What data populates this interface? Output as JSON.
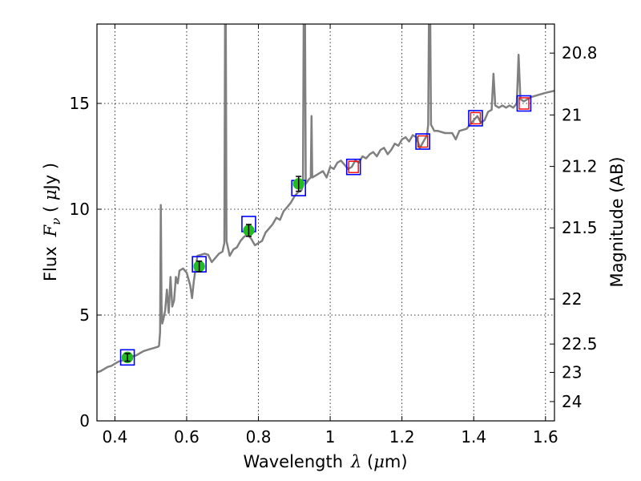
{
  "chart_data": {
    "type": "line",
    "xlabel": {
      "text": "Wavelength",
      "symbol": "λ",
      "unit_open": " (",
      "unit_math": "μ",
      "unit_text": "m)"
    },
    "ylabel": {
      "text": "Flux",
      "symbol": "F",
      "sub": "ν",
      "unit_open": " ( ",
      "unit_math": "μ",
      "unit_text": "Jy )"
    },
    "y2label": "Magnitude (AB)",
    "xlim": [
      0.35,
      1.625
    ],
    "ylim": [
      0,
      18.75
    ],
    "xticks": [
      0.4,
      0.6,
      0.8,
      1.0,
      1.2,
      1.4,
      1.6
    ],
    "xtick_labels": [
      "0.4",
      "0.6",
      "0.8",
      "1",
      "1.2",
      "1.4",
      "1.6"
    ],
    "yticks": [
      0,
      5,
      10,
      15
    ],
    "ytick_labels": [
      "0",
      "5",
      "10",
      "15"
    ],
    "y2ticks": [
      {
        "label": "20.8",
        "mag": 20.8
      },
      {
        "label": "21",
        "mag": 21.0
      },
      {
        "label": "21.2",
        "mag": 21.2
      },
      {
        "label": "21.5",
        "mag": 21.5
      },
      {
        "label": "22",
        "mag": 22.0
      },
      {
        "label": "22.5",
        "mag": 22.5
      },
      {
        "label": "23",
        "mag": 23.0
      },
      {
        "label": "24",
        "mag": 24.0
      }
    ],
    "grid": true,
    "colors": {
      "spectrum": "#808080",
      "photometry_fill": "#22bb22",
      "model_box": "#0000ff",
      "model_inner": "#ff0000",
      "errorbar": "#000000"
    },
    "spectrum": [
      [
        0.35,
        2.3
      ],
      [
        0.36,
        2.35
      ],
      [
        0.37,
        2.45
      ],
      [
        0.38,
        2.55
      ],
      [
        0.39,
        2.6
      ],
      [
        0.4,
        2.7
      ],
      [
        0.41,
        2.8
      ],
      [
        0.42,
        2.85
      ],
      [
        0.43,
        2.92
      ],
      [
        0.44,
        3.0
      ],
      [
        0.45,
        3.05
      ],
      [
        0.46,
        3.1
      ],
      [
        0.47,
        3.2
      ],
      [
        0.48,
        3.3
      ],
      [
        0.49,
        3.35
      ],
      [
        0.5,
        3.4
      ],
      [
        0.51,
        3.45
      ],
      [
        0.52,
        3.5
      ],
      [
        0.523,
        3.55
      ],
      [
        0.526,
        4.2
      ],
      [
        0.528,
        10.2
      ],
      [
        0.53,
        5.5
      ],
      [
        0.532,
        4.6
      ],
      [
        0.535,
        4.8
      ],
      [
        0.54,
        5.2
      ],
      [
        0.545,
        6.2
      ],
      [
        0.55,
        5.1
      ],
      [
        0.555,
        6.8
      ],
      [
        0.56,
        5.4
      ],
      [
        0.565,
        5.7
      ],
      [
        0.57,
        6.8
      ],
      [
        0.575,
        6.5
      ],
      [
        0.58,
        7.1
      ],
      [
        0.59,
        7.2
      ],
      [
        0.6,
        7.0
      ],
      [
        0.61,
        6.4
      ],
      [
        0.615,
        5.8
      ],
      [
        0.62,
        6.6
      ],
      [
        0.63,
        7.8
      ],
      [
        0.64,
        7.85
      ],
      [
        0.65,
        7.9
      ],
      [
        0.66,
        7.85
      ],
      [
        0.67,
        7.5
      ],
      [
        0.68,
        7.7
      ],
      [
        0.69,
        7.9
      ],
      [
        0.7,
        8.0
      ],
      [
        0.705,
        8.4
      ],
      [
        0.707,
        18.75
      ],
      [
        0.709,
        18.75
      ],
      [
        0.711,
        8.5
      ],
      [
        0.72,
        7.8
      ],
      [
        0.73,
        8.1
      ],
      [
        0.74,
        8.2
      ],
      [
        0.75,
        8.5
      ],
      [
        0.76,
        8.7
      ],
      [
        0.77,
        8.8
      ],
      [
        0.78,
        8.6
      ],
      [
        0.79,
        8.3
      ],
      [
        0.8,
        8.4
      ],
      [
        0.81,
        8.5
      ],
      [
        0.82,
        8.9
      ],
      [
        0.83,
        9.1
      ],
      [
        0.84,
        9.3
      ],
      [
        0.85,
        9.6
      ],
      [
        0.86,
        9.5
      ],
      [
        0.87,
        9.9
      ],
      [
        0.88,
        10.1
      ],
      [
        0.89,
        10.3
      ],
      [
        0.9,
        10.6
      ],
      [
        0.91,
        10.8
      ],
      [
        0.92,
        10.9
      ],
      [
        0.924,
        11.1
      ],
      [
        0.926,
        18.75
      ],
      [
        0.93,
        18.75
      ],
      [
        0.932,
        11.2
      ],
      [
        0.94,
        11.4
      ],
      [
        0.946,
        11.5
      ],
      [
        0.948,
        14.4
      ],
      [
        0.95,
        11.5
      ],
      [
        0.96,
        11.6
      ],
      [
        0.97,
        11.7
      ],
      [
        0.98,
        11.8
      ],
      [
        0.99,
        11.5
      ],
      [
        1.0,
        12.0
      ],
      [
        1.01,
        11.9
      ],
      [
        1.02,
        12.2
      ],
      [
        1.03,
        12.3
      ],
      [
        1.04,
        12.1
      ],
      [
        1.05,
        11.9
      ],
      [
        1.06,
        12.0
      ],
      [
        1.07,
        12.3
      ],
      [
        1.08,
        12.2
      ],
      [
        1.09,
        12.5
      ],
      [
        1.1,
        12.4
      ],
      [
        1.11,
        12.6
      ],
      [
        1.12,
        12.7
      ],
      [
        1.13,
        12.5
      ],
      [
        1.14,
        12.8
      ],
      [
        1.15,
        12.9
      ],
      [
        1.16,
        12.6
      ],
      [
        1.17,
        12.8
      ],
      [
        1.18,
        13.1
      ],
      [
        1.19,
        13.0
      ],
      [
        1.2,
        13.3
      ],
      [
        1.21,
        13.4
      ],
      [
        1.22,
        13.2
      ],
      [
        1.23,
        13.5
      ],
      [
        1.24,
        13.4
      ],
      [
        1.25,
        12.9
      ],
      [
        1.26,
        13.2
      ],
      [
        1.27,
        13.5
      ],
      [
        1.273,
        14.0
      ],
      [
        1.275,
        18.75
      ],
      [
        1.279,
        18.75
      ],
      [
        1.281,
        14.0
      ],
      [
        1.29,
        13.7
      ],
      [
        1.3,
        13.7
      ],
      [
        1.32,
        13.6
      ],
      [
        1.34,
        13.6
      ],
      [
        1.35,
        13.3
      ],
      [
        1.36,
        13.7
      ],
      [
        1.38,
        13.8
      ],
      [
        1.39,
        14.0
      ],
      [
        1.4,
        14.2
      ],
      [
        1.41,
        14.4
      ],
      [
        1.42,
        14.1
      ],
      [
        1.43,
        14.2
      ],
      [
        1.44,
        14.6
      ],
      [
        1.45,
        14.7
      ],
      [
        1.455,
        16.4
      ],
      [
        1.46,
        14.9
      ],
      [
        1.47,
        14.8
      ],
      [
        1.48,
        14.9
      ],
      [
        1.49,
        14.8
      ],
      [
        1.5,
        14.9
      ],
      [
        1.51,
        14.8
      ],
      [
        1.52,
        15.0
      ],
      [
        1.525,
        17.3
      ],
      [
        1.53,
        15.2
      ],
      [
        1.54,
        15.1
      ],
      [
        1.55,
        15.2
      ],
      [
        1.56,
        15.3
      ],
      [
        1.58,
        15.4
      ],
      [
        1.6,
        15.5
      ],
      [
        1.625,
        15.6
      ]
    ],
    "photometry": [
      {
        "x": 0.435,
        "y": 3.0,
        "err": 0.18
      },
      {
        "x": 0.635,
        "y": 7.3,
        "err": 0.25
      },
      {
        "x": 0.773,
        "y": 9.0,
        "err": 0.28
      },
      {
        "x": 0.912,
        "y": 11.2,
        "err": 0.35
      }
    ],
    "model_points": [
      {
        "x": 0.435,
        "y": 3.0,
        "inner": false
      },
      {
        "x": 0.635,
        "y": 7.4,
        "inner": false
      },
      {
        "x": 0.773,
        "y": 9.3,
        "inner": false
      },
      {
        "x": 0.912,
        "y": 11.0,
        "inner": false
      },
      {
        "x": 1.065,
        "y": 12.0,
        "inner": true
      },
      {
        "x": 1.258,
        "y": 13.2,
        "inner": true
      },
      {
        "x": 1.405,
        "y": 14.3,
        "inner": true
      },
      {
        "x": 1.54,
        "y": 15.0,
        "inner": true
      }
    ]
  }
}
